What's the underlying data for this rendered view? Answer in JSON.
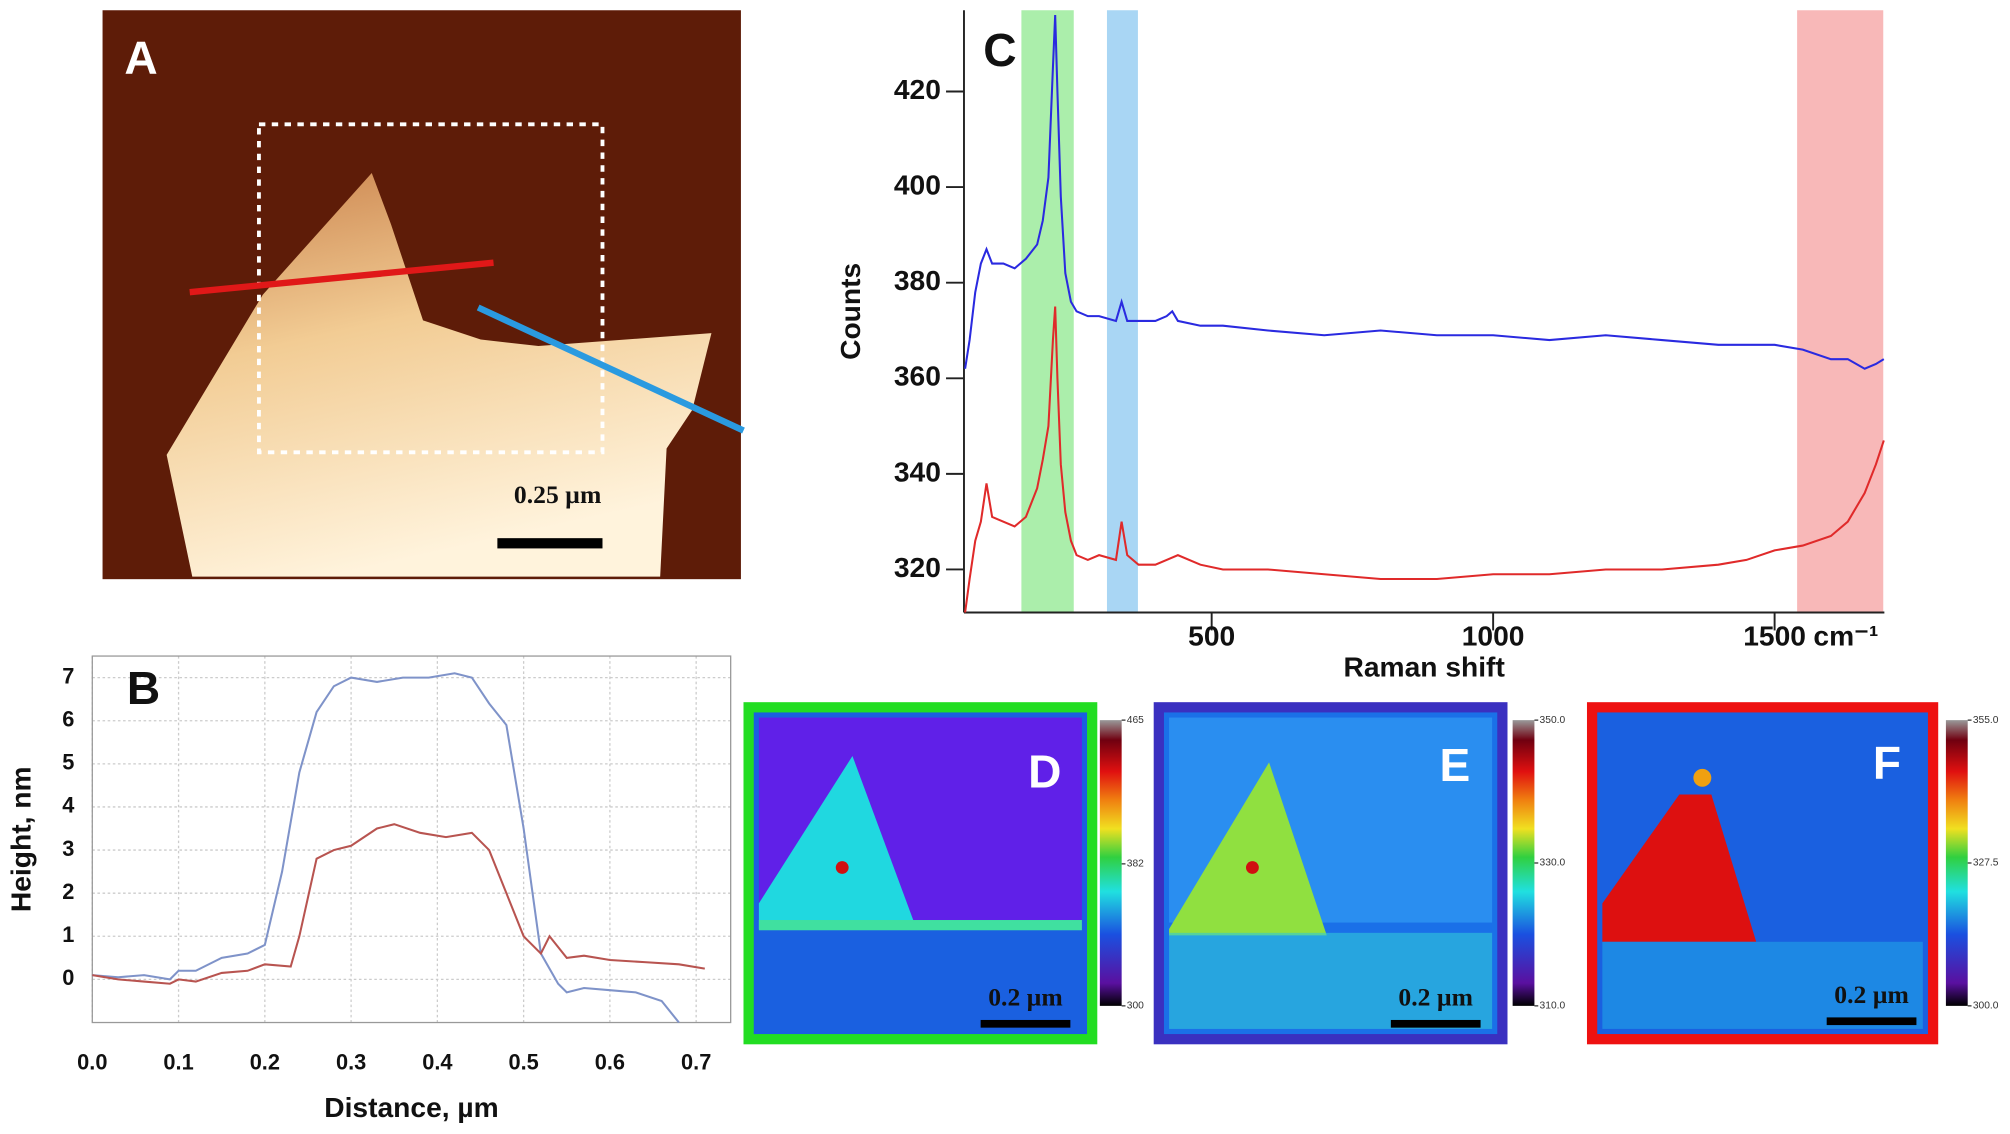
{
  "panels": {
    "A": {
      "label": "A",
      "scale_bar": "0.25 µm"
    }
  },
  "chart_data": [
    {
      "type": "line",
      "panel_label": "B",
      "x_label": "Distance, µm",
      "y_label": "Height, nm",
      "xlim": [
        0,
        0.74
      ],
      "ylim": [
        -1,
        7.5
      ],
      "xticks": [
        {
          "value": 0,
          "label": "0.0"
        },
        0.1,
        0.2,
        0.3,
        0.4,
        0.5,
        0.6,
        0.7
      ],
      "yticks": [
        0,
        1,
        2,
        3,
        4,
        5,
        6,
        7
      ],
      "grid": true,
      "series": [
        {
          "color": "#7f93c9",
          "x": [
            0,
            0.03,
            0.06,
            0.09,
            0.1,
            0.12,
            0.15,
            0.18,
            0.2,
            0.22,
            0.24,
            0.26,
            0.28,
            0.3,
            0.33,
            0.36,
            0.39,
            0.42,
            0.44,
            0.46,
            0.48,
            0.5,
            0.52,
            0.54,
            0.55,
            0.57,
            0.6,
            0.63,
            0.66,
            0.68
          ],
          "values": [
            0.1,
            0.05,
            0.1,
            0.0,
            0.2,
            0.2,
            0.5,
            0.6,
            0.8,
            2.5,
            4.8,
            6.2,
            6.8,
            7.0,
            6.9,
            7.0,
            7.0,
            7.1,
            7.0,
            6.4,
            5.9,
            3.5,
            0.6,
            -0.1,
            -0.3,
            -0.2,
            -0.25,
            -0.3,
            -0.5,
            -1.0
          ]
        },
        {
          "color": "#b85450",
          "x": [
            0,
            0.03,
            0.06,
            0.09,
            0.1,
            0.12,
            0.15,
            0.18,
            0.2,
            0.23,
            0.24,
            0.26,
            0.28,
            0.3,
            0.33,
            0.35,
            0.38,
            0.41,
            0.44,
            0.46,
            0.48,
            0.5,
            0.52,
            0.53,
            0.55,
            0.57,
            0.6,
            0.64,
            0.68,
            0.71
          ],
          "values": [
            0.1,
            0.0,
            -0.05,
            -0.1,
            0.0,
            -0.05,
            0.15,
            0.2,
            0.35,
            0.3,
            1.0,
            2.8,
            3.0,
            3.1,
            3.5,
            3.6,
            3.4,
            3.3,
            3.4,
            3.0,
            2.0,
            1.0,
            0.6,
            1.0,
            0.5,
            0.55,
            0.45,
            0.4,
            0.35,
            0.25
          ]
        }
      ]
    },
    {
      "type": "line",
      "panel_label": "C",
      "x_label": "Raman shift",
      "y_label": "Counts",
      "x_unit": "cm⁻¹",
      "xlim": [
        60,
        1695
      ],
      "ylim": [
        311,
        437
      ],
      "xticks": [
        500,
        1000,
        1500
      ],
      "yticks": [
        320,
        340,
        360,
        380,
        400,
        420
      ],
      "grid": false,
      "highlights": [
        {
          "x0": 162,
          "x1": 255,
          "color": "#8fe88f"
        },
        {
          "x0": 314,
          "x1": 369,
          "color": "#8cc8f0"
        },
        {
          "x0": 1540,
          "x1": 1693,
          "color": "#f5a0a0"
        }
      ],
      "series": [
        {
          "color": "#2a2ae0",
          "x": [
            62,
            70,
            80,
            90,
            100,
            110,
            130,
            150,
            170,
            190,
            200,
            210,
            218,
            222,
            226,
            232,
            240,
            250,
            260,
            280,
            300,
            330,
            340,
            350,
            370,
            400,
            420,
            430,
            440,
            480,
            520,
            600,
            700,
            800,
            900,
            1000,
            1100,
            1200,
            1300,
            1400,
            1500,
            1550,
            1600,
            1630,
            1660,
            1680,
            1694
          ],
          "values": [
            362,
            368,
            378,
            384,
            387,
            384,
            384,
            383,
            385,
            388,
            393,
            402,
            425,
            436,
            420,
            398,
            382,
            376,
            374,
            373,
            373,
            372,
            376,
            372,
            372,
            372,
            373,
            374,
            372,
            371,
            371,
            370,
            369,
            370,
            369,
            369,
            368,
            369,
            368,
            367,
            367,
            366,
            364,
            364,
            362,
            363,
            364
          ]
        },
        {
          "color": "#e02a2a",
          "x": [
            62,
            70,
            80,
            90,
            100,
            110,
            130,
            150,
            170,
            190,
            200,
            210,
            218,
            222,
            226,
            232,
            240,
            250,
            260,
            280,
            300,
            330,
            340,
            350,
            370,
            400,
            420,
            440,
            480,
            520,
            600,
            700,
            800,
            900,
            1000,
            1100,
            1200,
            1300,
            1400,
            1450,
            1500,
            1550,
            1600,
            1630,
            1660,
            1680,
            1694
          ],
          "values": [
            311,
            318,
            326,
            330,
            338,
            331,
            330,
            329,
            331,
            337,
            343,
            350,
            368,
            375,
            360,
            342,
            332,
            326,
            323,
            322,
            323,
            322,
            330,
            323,
            321,
            321,
            322,
            323,
            321,
            320,
            320,
            319,
            318,
            318,
            319,
            319,
            320,
            320,
            321,
            322,
            324,
            325,
            327,
            330,
            336,
            342,
            347
          ]
        }
      ]
    }
  ],
  "maps": [
    {
      "label": "D",
      "scale_bar": "0.2 µm",
      "border": "#22dd22",
      "clim": [
        300,
        465
      ],
      "cticks": [
        300,
        382,
        465
      ]
    },
    {
      "label": "E",
      "scale_bar": "0.2 µm",
      "border": "#3a30c0",
      "clim": [
        310,
        350
      ],
      "cticks": [
        {
          "value": 310,
          "label": "310.0"
        },
        {
          "value": 330,
          "label": "330.0"
        },
        {
          "value": 350,
          "label": "350.0"
        }
      ]
    },
    {
      "label": "F",
      "scale_bar": "0.2 µm",
      "border": "#ee1111",
      "clim": [
        300,
        355
      ],
      "cticks": [
        {
          "value": 300,
          "label": "300.0"
        },
        {
          "value": 327.5,
          "label": "327.5"
        },
        {
          "value": 355,
          "label": "355.0"
        }
      ]
    }
  ]
}
